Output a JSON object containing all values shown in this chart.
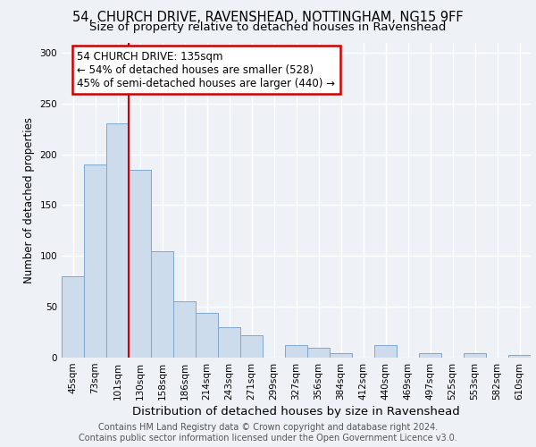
{
  "title_line1": "54, CHURCH DRIVE, RAVENSHEAD, NOTTINGHAM, NG15 9FF",
  "title_line2": "Size of property relative to detached houses in Ravenshead",
  "xlabel": "Distribution of detached houses by size in Ravenshead",
  "ylabel": "Number of detached properties",
  "categories": [
    "45sqm",
    "73sqm",
    "101sqm",
    "130sqm",
    "158sqm",
    "186sqm",
    "214sqm",
    "243sqm",
    "271sqm",
    "299sqm",
    "327sqm",
    "356sqm",
    "384sqm",
    "412sqm",
    "440sqm",
    "469sqm",
    "497sqm",
    "525sqm",
    "553sqm",
    "582sqm",
    "610sqm"
  ],
  "values": [
    80,
    190,
    230,
    185,
    105,
    55,
    44,
    30,
    22,
    0,
    12,
    10,
    4,
    0,
    12,
    0,
    4,
    0,
    4,
    0,
    3
  ],
  "bar_color": "#ccdcec",
  "bar_edge_color": "#80a8cc",
  "vline_x": 2.5,
  "vline_color": "#cc0000",
  "annotation_line1": "54 CHURCH DRIVE: 135sqm",
  "annotation_line2": "← 54% of detached houses are smaller (528)",
  "annotation_line3": "45% of semi-detached houses are larger (440) →",
  "annotation_box_edge_color": "#cc0000",
  "annotation_box_face_color": "#ffffff",
  "ylim": [
    0,
    310
  ],
  "yticks": [
    0,
    50,
    100,
    150,
    200,
    250,
    300
  ],
  "background_color": "#eef2f7",
  "grid_color": "#ffffff",
  "footer_text": "Contains HM Land Registry data © Crown copyright and database right 2024.\nContains public sector information licensed under the Open Government Licence v3.0.",
  "title_fontsize": 10.5,
  "subtitle_fontsize": 9.5,
  "xlabel_fontsize": 9.5,
  "ylabel_fontsize": 8.5,
  "tick_fontsize": 7.5,
  "annotation_fontsize": 8.5,
  "footer_fontsize": 7.0
}
